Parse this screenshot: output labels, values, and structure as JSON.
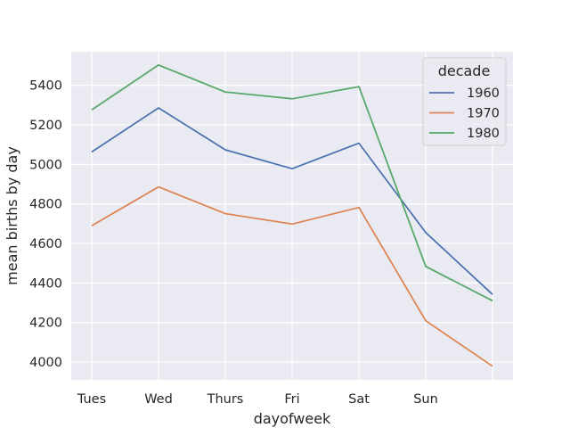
{
  "chart_data": {
    "type": "line",
    "title": "",
    "xlabel": "dayofweek",
    "ylabel": "mean births by day",
    "categories": [
      "Tues",
      "Wed",
      "Thurs",
      "Fri",
      "Sat",
      "Sun",
      ""
    ],
    "yticks": [
      4000,
      4200,
      4400,
      4600,
      4800,
      5000,
      5200,
      5400
    ],
    "ylim": [
      3910,
      5570
    ],
    "grid": true,
    "legend": {
      "title": "decade",
      "placement": "top-right"
    },
    "series": [
      {
        "name": "1960",
        "color": "#4c72b0",
        "values": [
          5063,
          5286,
          5074,
          4978,
          5107,
          4655,
          4342
        ]
      },
      {
        "name": "1970",
        "color": "#dd8452",
        "values": [
          4690,
          4886,
          4751,
          4698,
          4782,
          4209,
          3979
        ]
      },
      {
        "name": "1980",
        "color": "#55a868",
        "values": [
          5276,
          5503,
          5366,
          5332,
          5393,
          4484,
          4310
        ]
      }
    ]
  },
  "style": {
    "background": "#eaeaf2",
    "grid_color": "#ffffff",
    "text_color": "#262626"
  }
}
